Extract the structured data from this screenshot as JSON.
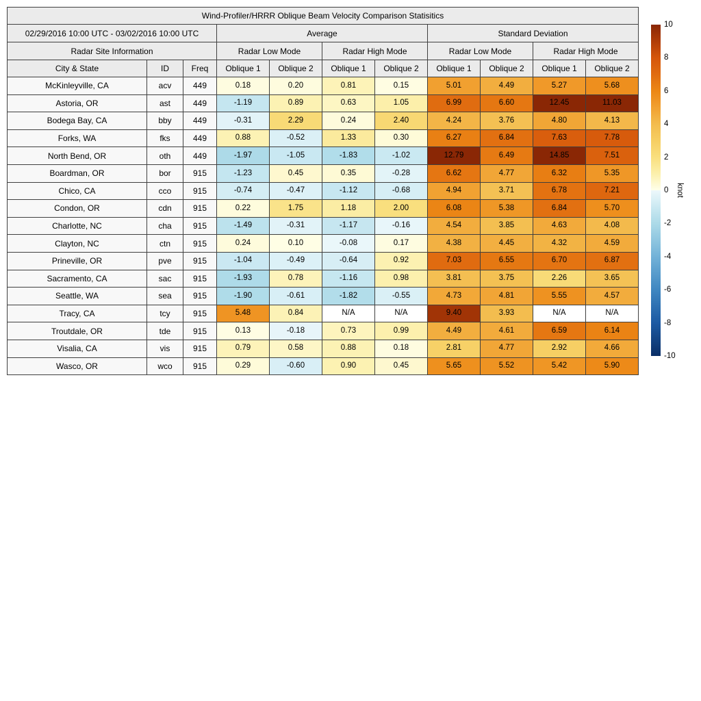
{
  "colors": {
    "page_bg": "#FFFFFF",
    "header_bg": "#EBEBEB",
    "info_bg": "#F8F8F8",
    "na_bg": "#FFFFFF",
    "border": "#3F3F3F",
    "text": "#000000",
    "negative_stops": [
      [
        -10,
        "#0A2E66"
      ],
      [
        -8,
        "#1C5AA3"
      ],
      [
        -6,
        "#3F87C1"
      ],
      [
        -4,
        "#72B2D8"
      ],
      [
        -2,
        "#ACDAE8"
      ],
      [
        -1,
        "#CBE9F2"
      ],
      [
        0,
        "#EDF8FB"
      ]
    ],
    "positive_stops": [
      [
        0,
        "#FFFFEB"
      ],
      [
        1,
        "#FCF0AC"
      ],
      [
        2,
        "#F9DF7E"
      ],
      [
        3,
        "#F6CE62"
      ],
      [
        4,
        "#F3BC4E"
      ],
      [
        5,
        "#F1A030"
      ],
      [
        6,
        "#EC8715"
      ],
      [
        7,
        "#E06C10"
      ],
      [
        8,
        "#D5560B"
      ],
      [
        9,
        "#B03C07"
      ],
      [
        10,
        "#8A2705"
      ]
    ]
  },
  "chart_data": {
    "type": "table",
    "title": "Wind-Profiler/HRRR Oblique Beam Velocity Comparison Statisitics",
    "date_range": "02/29/2016 10:00 UTC - 03/02/2016 10:00 UTC",
    "group_headers": {
      "site_info": "Radar Site Information",
      "average": "Average",
      "std": "Standard Deviation",
      "low_mode": "Radar Low Mode",
      "high_mode": "Radar High Mode"
    },
    "column_headers": {
      "city": "City & State",
      "id": "ID",
      "freq": "Freq",
      "oblique1": "Oblique 1",
      "oblique2": "Oblique 2"
    },
    "rows": [
      {
        "city": "McKinleyville, CA",
        "id": "acv",
        "freq": "449",
        "values": [
          "0.18",
          "0.20",
          "0.81",
          "0.15",
          "5.01",
          "4.49",
          "5.27",
          "5.68"
        ]
      },
      {
        "city": "Astoria, OR",
        "id": "ast",
        "freq": "449",
        "values": [
          "-1.19",
          "0.89",
          "0.63",
          "1.05",
          "6.99",
          "6.60",
          "12.45",
          "11.03"
        ]
      },
      {
        "city": "Bodega Bay, CA",
        "id": "bby",
        "freq": "449",
        "values": [
          "-0.31",
          "2.29",
          "0.24",
          "2.40",
          "4.24",
          "3.76",
          "4.80",
          "4.13"
        ]
      },
      {
        "city": "Forks, WA",
        "id": "fks",
        "freq": "449",
        "values": [
          "0.88",
          "-0.52",
          "1.33",
          "0.30",
          "6.27",
          "6.84",
          "7.63",
          "7.78"
        ]
      },
      {
        "city": "North Bend, OR",
        "id": "oth",
        "freq": "449",
        "values": [
          "-1.97",
          "-1.05",
          "-1.83",
          "-1.02",
          "12.79",
          "6.49",
          "14.85",
          "7.51"
        ]
      },
      {
        "city": "Boardman, OR",
        "id": "bor",
        "freq": "915",
        "values": [
          "-1.23",
          "0.45",
          "0.35",
          "-0.28",
          "6.62",
          "4.77",
          "6.32",
          "5.35"
        ]
      },
      {
        "city": "Chico, CA",
        "id": "cco",
        "freq": "915",
        "values": [
          "-0.74",
          "-0.47",
          "-1.12",
          "-0.68",
          "4.94",
          "3.71",
          "6.78",
          "7.21"
        ]
      },
      {
        "city": "Condon, OR",
        "id": "cdn",
        "freq": "915",
        "values": [
          "0.22",
          "1.75",
          "1.18",
          "2.00",
          "6.08",
          "5.38",
          "6.84",
          "5.70"
        ]
      },
      {
        "city": "Charlotte, NC",
        "id": "cha",
        "freq": "915",
        "values": [
          "-1.49",
          "-0.31",
          "-1.17",
          "-0.16",
          "4.54",
          "3.85",
          "4.63",
          "4.08"
        ]
      },
      {
        "city": "Clayton, NC",
        "id": "ctn",
        "freq": "915",
        "values": [
          "0.24",
          "0.10",
          "-0.08",
          "0.17",
          "4.38",
          "4.45",
          "4.32",
          "4.59"
        ]
      },
      {
        "city": "Prineville, OR",
        "id": "pve",
        "freq": "915",
        "values": [
          "-1.04",
          "-0.49",
          "-0.64",
          "0.92",
          "7.03",
          "6.55",
          "6.70",
          "6.87"
        ]
      },
      {
        "city": "Sacramento, CA",
        "id": "sac",
        "freq": "915",
        "values": [
          "-1.93",
          "0.78",
          "-1.16",
          "0.98",
          "3.81",
          "3.75",
          "2.26",
          "3.65"
        ]
      },
      {
        "city": "Seattle, WA",
        "id": "sea",
        "freq": "915",
        "values": [
          "-1.90",
          "-0.61",
          "-1.82",
          "-0.55",
          "4.73",
          "4.81",
          "5.55",
          "4.57"
        ]
      },
      {
        "city": "Tracy, CA",
        "id": "tcy",
        "freq": "915",
        "values": [
          "5.48",
          "0.84",
          "N/A",
          "N/A",
          "9.40",
          "3.93",
          "N/A",
          "N/A"
        ]
      },
      {
        "city": "Troutdale, OR",
        "id": "tde",
        "freq": "915",
        "values": [
          "0.13",
          "-0.18",
          "0.73",
          "0.99",
          "4.49",
          "4.61",
          "6.59",
          "6.14"
        ]
      },
      {
        "city": "Visalia, CA",
        "id": "vis",
        "freq": "915",
        "values": [
          "0.79",
          "0.58",
          "0.88",
          "0.18",
          "2.81",
          "4.77",
          "2.92",
          "4.66"
        ]
      },
      {
        "city": "Wasco, OR",
        "id": "wco",
        "freq": "915",
        "values": [
          "0.29",
          "-0.60",
          "0.90",
          "0.45",
          "5.65",
          "5.52",
          "5.42",
          "5.90"
        ]
      }
    ],
    "colorbar": {
      "label": "knot",
      "min": -10,
      "max": 10,
      "ticks": [
        "10",
        "8",
        "6",
        "4",
        "2",
        "0",
        "-2",
        "-4",
        "-6",
        "-8",
        "-10"
      ]
    }
  }
}
